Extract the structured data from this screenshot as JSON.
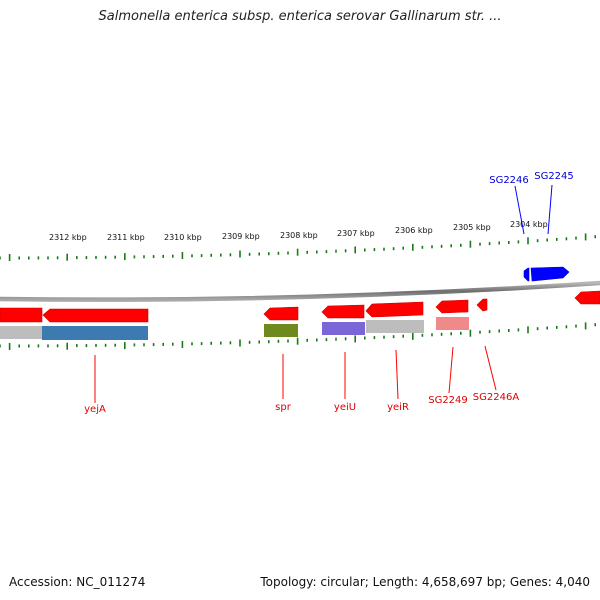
{
  "title": "Salmonella enterica subsp. enterica serovar Gallinarum str. ...",
  "scale": {
    "unit": "kbp",
    "ticks": [
      "2312 kbp",
      "2311 kbp",
      "2310 kbp",
      "2309 kbp",
      "2308 kbp",
      "2307 kbp",
      "2306 kbp",
      "2305 kbp",
      "2304 kbp"
    ]
  },
  "genes": [
    {
      "name": "yejA",
      "strand": "reverse",
      "color": "#ff0000"
    },
    {
      "name": "spr",
      "strand": "reverse",
      "color": "#ff0000"
    },
    {
      "name": "yeiU",
      "strand": "reverse",
      "color": "#ff0000"
    },
    {
      "name": "yeiR",
      "strand": "reverse",
      "color": "#ff0000"
    },
    {
      "name": "SG2249",
      "strand": "reverse",
      "color": "#ff0000"
    },
    {
      "name": "SG2246A",
      "strand": "reverse",
      "color": "#ff0000"
    },
    {
      "name": "SG2246",
      "strand": "forward",
      "color": "#0000ff"
    },
    {
      "name": "SG2245",
      "strand": "forward",
      "color": "#0000ff"
    }
  ],
  "colors": {
    "forward": "#0000ff",
    "reverse": "#ff0000",
    "backbone": "#808080",
    "ticks": "#1a7a1a",
    "cds_steelblue": "#3d7ab0",
    "cds_olive": "#6e8a1f",
    "cds_slate": "#7a66d6",
    "cds_gray": "#bdbdbd",
    "cds_pink": "#f08a8a"
  },
  "footer": {
    "accession": "Accession: NC_011274",
    "summary": "Topology: circular; Length: 4,658,697 bp; Genes: 4,040"
  }
}
